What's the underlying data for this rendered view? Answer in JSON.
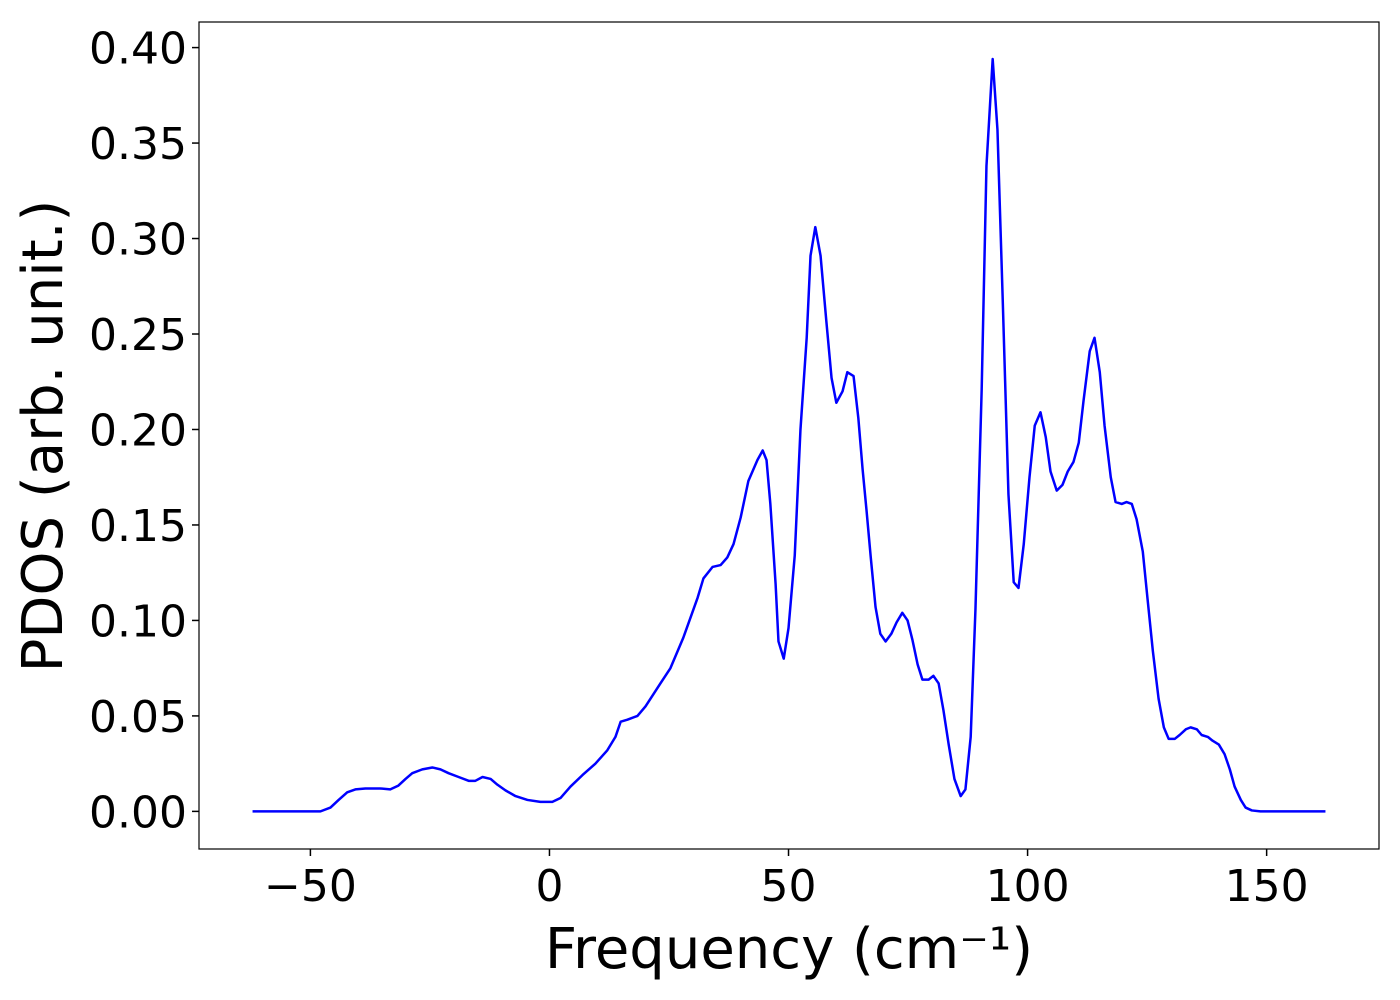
{
  "chart_data": {
    "type": "line",
    "xlabel": "Frequency (cm⁻¹)",
    "ylabel": "PDOS (arb. unit.)",
    "xlim": [
      -73.3,
      173.5
    ],
    "ylim": [
      -0.0197,
      0.4134
    ],
    "xticks": [
      {
        "value": -50,
        "label": "−50"
      },
      0,
      50,
      100,
      150
    ],
    "yticks": [
      {
        "value": 0,
        "label": "0.00"
      },
      {
        "value": 0.05,
        "label": "0.05"
      },
      {
        "value": 0.1,
        "label": "0.10"
      },
      {
        "value": 0.15,
        "label": "0.15"
      },
      {
        "value": 0.2,
        "label": "0.20"
      },
      {
        "value": 0.25,
        "label": "0.25"
      },
      {
        "value": 0.3,
        "label": "0.30"
      },
      {
        "value": 0.35,
        "label": "0.35"
      },
      {
        "value": 0.4,
        "label": "0.40"
      }
    ],
    "grid": false,
    "series": [
      {
        "color": "#0000ff",
        "x": [
          -62.1,
          -47.9,
          -45.8,
          -44.1,
          -42.3,
          -40.6,
          -38.5,
          -35.4,
          -33.3,
          -31.6,
          -30.1,
          -28.7,
          -26.6,
          -24.5,
          -22.8,
          -21.1,
          -19.0,
          -16.9,
          -15.5,
          -14.0,
          -12.3,
          -10.9,
          -9.2,
          -7.1,
          -4.6,
          -1.9,
          0.6,
          2.3,
          4.4,
          6.9,
          9.6,
          12.1,
          13.8,
          14.9,
          16.3,
          18.4,
          20.1,
          23.2,
          25.3,
          28.0,
          31.0,
          32.2,
          34.1,
          35.8,
          37.2,
          38.5,
          40.0,
          41.6,
          43.5,
          44.6,
          45.4,
          46.2,
          47.3,
          47.9,
          49.0,
          50.0,
          51.3,
          52.5,
          53.8,
          54.6,
          55.6,
          56.7,
          57.9,
          59.0,
          60.0,
          61.3,
          62.3,
          63.6,
          64.6,
          65.5,
          66.3,
          67.2,
          68.2,
          69.2,
          70.3,
          71.5,
          72.6,
          73.8,
          74.9,
          75.9,
          77.0,
          78.0,
          79.3,
          80.3,
          81.4,
          82.4,
          83.5,
          84.7,
          86.0,
          87.0,
          88.1,
          89.1,
          90.4,
          91.4,
          92.7,
          93.7,
          94.8,
          96.0,
          97.1,
          98.1,
          99.2,
          100.4,
          101.5,
          102.7,
          103.8,
          104.8,
          106.1,
          107.3,
          108.4,
          109.6,
          110.7,
          111.7,
          113.0,
          114.0,
          115.1,
          116.1,
          117.4,
          118.4,
          119.7,
          120.7,
          121.8,
          122.8,
          124.1,
          125.1,
          126.2,
          127.4,
          128.5,
          129.5,
          130.8,
          131.8,
          133.1,
          134.1,
          135.4,
          136.4,
          137.7,
          138.7,
          140.0,
          141.2,
          142.3,
          143.3,
          144.6,
          145.6,
          146.9,
          148.7,
          162.3
        ],
        "values": [
          0,
          0,
          0.002,
          0.006,
          0.01,
          0.0115,
          0.012,
          0.012,
          0.0115,
          0.0135,
          0.017,
          0.02,
          0.022,
          0.023,
          0.022,
          0.02,
          0.018,
          0.016,
          0.016,
          0.018,
          0.017,
          0.014,
          0.011,
          0.008,
          0.006,
          0.005,
          0.005,
          0.007,
          0.013,
          0.019,
          0.025,
          0.032,
          0.039,
          0.047,
          0.048,
          0.05,
          0.055,
          0.067,
          0.075,
          0.091,
          0.112,
          0.122,
          0.128,
          0.129,
          0.133,
          0.14,
          0.154,
          0.173,
          0.184,
          0.189,
          0.184,
          0.161,
          0.119,
          0.089,
          0.08,
          0.096,
          0.134,
          0.2,
          0.248,
          0.291,
          0.306,
          0.291,
          0.257,
          0.227,
          0.214,
          0.22,
          0.23,
          0.228,
          0.206,
          0.179,
          0.158,
          0.133,
          0.107,
          0.093,
          0.089,
          0.093,
          0.099,
          0.104,
          0.1,
          0.09,
          0.077,
          0.069,
          0.069,
          0.071,
          0.067,
          0.053,
          0.035,
          0.017,
          0.008,
          0.0115,
          0.039,
          0.106,
          0.221,
          0.338,
          0.394,
          0.357,
          0.268,
          0.166,
          0.12,
          0.117,
          0.14,
          0.175,
          0.202,
          0.209,
          0.196,
          0.178,
          0.168,
          0.171,
          0.178,
          0.183,
          0.193,
          0.215,
          0.241,
          0.248,
          0.23,
          0.202,
          0.175,
          0.162,
          0.161,
          0.162,
          0.161,
          0.153,
          0.136,
          0.111,
          0.084,
          0.059,
          0.044,
          0.038,
          0.038,
          0.04,
          0.043,
          0.044,
          0.043,
          0.04,
          0.039,
          0.037,
          0.035,
          0.03,
          0.022,
          0.013,
          0.006,
          0.002,
          0.0005,
          0,
          0
        ]
      }
    ]
  }
}
